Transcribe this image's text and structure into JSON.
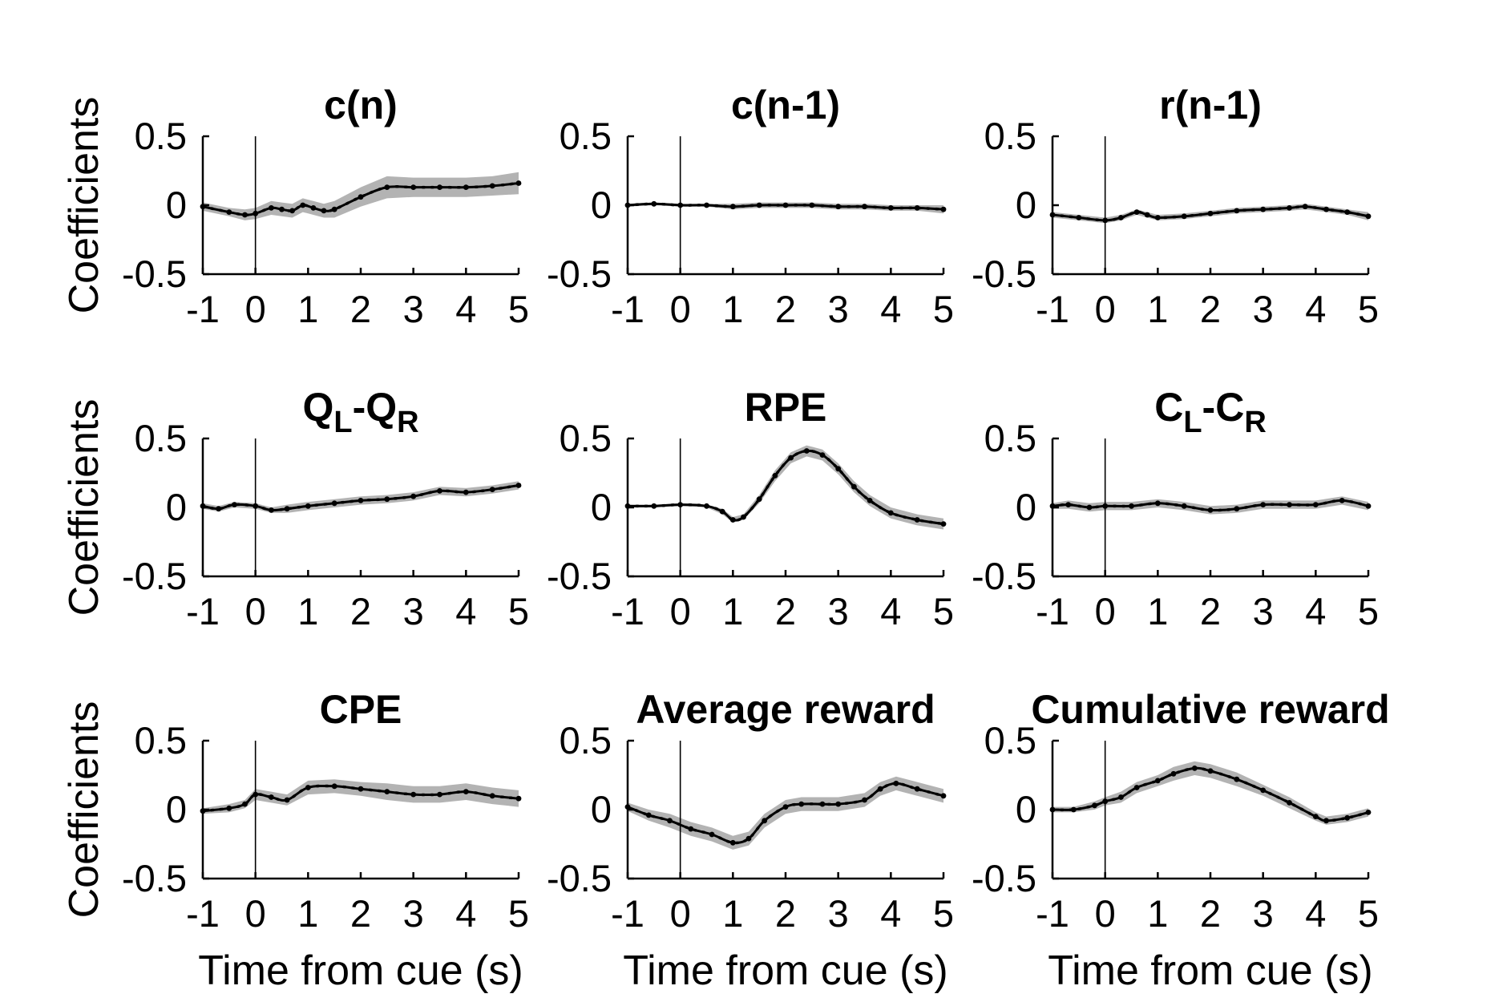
{
  "figure": {
    "ylabel": "Coefficients",
    "xlabel": "Time from cue (s)"
  },
  "chart_data": [
    {
      "type": "line",
      "title": "c(n)",
      "title_parts": [
        {
          "t": "c(n)"
        }
      ],
      "xlim": [
        -1,
        5
      ],
      "ylim": [
        -0.5,
        0.5
      ],
      "xticks": [
        "-1",
        "0",
        "1",
        "2",
        "3",
        "4",
        "5"
      ],
      "yticks": [
        "0.5",
        "0",
        "-0.5"
      ],
      "show_xlabel": false,
      "show_ylabel": true,
      "event_line_x": 0,
      "x": [
        -1,
        -0.5,
        -0.2,
        0,
        0.3,
        0.5,
        0.7,
        0.9,
        1.1,
        1.3,
        1.5,
        2,
        2.5,
        3,
        3.5,
        4,
        4.5,
        5
      ],
      "y": [
        -0.01,
        -0.05,
        -0.07,
        -0.06,
        -0.02,
        -0.03,
        -0.04,
        0.0,
        -0.02,
        -0.04,
        -0.03,
        0.06,
        0.13,
        0.13,
        0.13,
        0.13,
        0.14,
        0.16
      ],
      "band": [
        0.03,
        0.03,
        0.04,
        0.04,
        0.05,
        0.05,
        0.05,
        0.05,
        0.05,
        0.05,
        0.06,
        0.07,
        0.08,
        0.07,
        0.07,
        0.07,
        0.07,
        0.08
      ],
      "colors": {
        "line": "#000000",
        "band": "#b3b3b3"
      }
    },
    {
      "type": "line",
      "title": "c(n-1)",
      "title_parts": [
        {
          "t": "c(n-1)"
        }
      ],
      "xlim": [
        -1,
        5
      ],
      "ylim": [
        -0.5,
        0.5
      ],
      "xticks": [
        "-1",
        "0",
        "1",
        "2",
        "3",
        "4",
        "5"
      ],
      "yticks": [
        "0.5",
        "0",
        "-0.5"
      ],
      "show_xlabel": false,
      "show_ylabel": false,
      "event_line_x": 0,
      "x": [
        -1,
        -0.5,
        0,
        0.5,
        1,
        1.5,
        2,
        2.5,
        3,
        3.5,
        4,
        4.5,
        5
      ],
      "y": [
        0.0,
        0.01,
        0.0,
        0.0,
        -0.01,
        0.0,
        0.0,
        0.0,
        -0.01,
        -0.01,
        -0.02,
        -0.02,
        -0.03
      ],
      "band": [
        0.01,
        0.01,
        0.01,
        0.01,
        0.02,
        0.02,
        0.02,
        0.02,
        0.02,
        0.02,
        0.02,
        0.02,
        0.03
      ],
      "colors": {
        "line": "#000000",
        "band": "#b3b3b3"
      }
    },
    {
      "type": "line",
      "title": "r(n-1)",
      "title_parts": [
        {
          "t": "r(n-1)"
        }
      ],
      "xlim": [
        -1,
        5
      ],
      "ylim": [
        -0.5,
        0.5
      ],
      "xticks": [
        "-1",
        "0",
        "1",
        "2",
        "3",
        "4",
        "5"
      ],
      "yticks": [
        "0.5",
        "0",
        "-0.5"
      ],
      "show_xlabel": false,
      "show_ylabel": false,
      "event_line_x": 0,
      "x": [
        -1,
        -0.5,
        0,
        0.3,
        0.6,
        0.8,
        1,
        1.5,
        2,
        2.5,
        3,
        3.5,
        3.8,
        4.2,
        4.6,
        5
      ],
      "y": [
        -0.07,
        -0.09,
        -0.11,
        -0.09,
        -0.05,
        -0.07,
        -0.09,
        -0.08,
        -0.06,
        -0.04,
        -0.03,
        -0.02,
        -0.01,
        -0.03,
        -0.05,
        -0.08
      ],
      "band": [
        0.02,
        0.02,
        0.02,
        0.02,
        0.02,
        0.02,
        0.02,
        0.02,
        0.02,
        0.02,
        0.02,
        0.02,
        0.02,
        0.02,
        0.02,
        0.03
      ],
      "colors": {
        "line": "#000000",
        "band": "#b3b3b3"
      }
    },
    {
      "type": "line",
      "title": "QL-QR",
      "title_parts": [
        {
          "t": "Q"
        },
        {
          "t": "L",
          "sub": true
        },
        {
          "t": "-Q"
        },
        {
          "t": "R",
          "sub": true
        }
      ],
      "xlim": [
        -1,
        5
      ],
      "ylim": [
        -0.5,
        0.5
      ],
      "xticks": [
        "-1",
        "0",
        "1",
        "2",
        "3",
        "4",
        "5"
      ],
      "yticks": [
        "0.5",
        "0",
        "-0.5"
      ],
      "show_xlabel": false,
      "show_ylabel": true,
      "event_line_x": 0,
      "x": [
        -1,
        -0.7,
        -0.4,
        0,
        0.3,
        0.6,
        1,
        1.5,
        2,
        2.5,
        3,
        3.5,
        4,
        4.5,
        5
      ],
      "y": [
        0.01,
        -0.01,
        0.02,
        0.01,
        -0.02,
        -0.01,
        0.01,
        0.03,
        0.05,
        0.06,
        0.08,
        0.12,
        0.11,
        0.13,
        0.16
      ],
      "band": [
        0.02,
        0.02,
        0.02,
        0.02,
        0.02,
        0.03,
        0.03,
        0.03,
        0.03,
        0.03,
        0.03,
        0.03,
        0.03,
        0.03,
        0.03
      ],
      "colors": {
        "line": "#000000",
        "band": "#b3b3b3"
      }
    },
    {
      "type": "line",
      "title": "RPE",
      "title_parts": [
        {
          "t": "RPE"
        }
      ],
      "xlim": [
        -1,
        5
      ],
      "ylim": [
        -0.5,
        0.5
      ],
      "xticks": [
        "-1",
        "0",
        "1",
        "2",
        "3",
        "4",
        "5"
      ],
      "yticks": [
        "0.5",
        "0",
        "-0.5"
      ],
      "show_xlabel": false,
      "show_ylabel": false,
      "event_line_x": 0,
      "x": [
        -1,
        -0.5,
        0,
        0.5,
        0.8,
        1,
        1.2,
        1.5,
        1.8,
        2.1,
        2.4,
        2.7,
        3,
        3.3,
        3.6,
        4,
        4.5,
        5
      ],
      "y": [
        0.01,
        0.01,
        0.02,
        0.01,
        -0.03,
        -0.09,
        -0.07,
        0.06,
        0.23,
        0.36,
        0.41,
        0.38,
        0.28,
        0.15,
        0.05,
        -0.04,
        -0.09,
        -0.12
      ],
      "band": [
        0.01,
        0.01,
        0.01,
        0.01,
        0.02,
        0.02,
        0.02,
        0.03,
        0.04,
        0.04,
        0.04,
        0.04,
        0.04,
        0.04,
        0.04,
        0.04,
        0.04,
        0.04
      ],
      "colors": {
        "line": "#000000",
        "band": "#b3b3b3"
      }
    },
    {
      "type": "line",
      "title": "CL-CR",
      "title_parts": [
        {
          "t": "C"
        },
        {
          "t": "L",
          "sub": true
        },
        {
          "t": "-C"
        },
        {
          "t": "R",
          "sub": true
        }
      ],
      "xlim": [
        -1,
        5
      ],
      "ylim": [
        -0.5,
        0.5
      ],
      "xticks": [
        "-1",
        "0",
        "1",
        "2",
        "3",
        "4",
        "5"
      ],
      "yticks": [
        "0.5",
        "0",
        "-0.5"
      ],
      "show_xlabel": false,
      "show_ylabel": false,
      "event_line_x": 0,
      "x": [
        -1,
        -0.7,
        -0.3,
        0,
        0.5,
        1,
        1.5,
        2,
        2.5,
        3,
        3.5,
        4,
        4.5,
        5
      ],
      "y": [
        0.01,
        0.02,
        0.0,
        0.01,
        0.01,
        0.03,
        0.01,
        -0.02,
        -0.01,
        0.02,
        0.02,
        0.02,
        0.05,
        0.01
      ],
      "band": [
        0.02,
        0.03,
        0.03,
        0.03,
        0.03,
        0.03,
        0.03,
        0.03,
        0.03,
        0.03,
        0.03,
        0.03,
        0.03,
        0.03
      ],
      "colors": {
        "line": "#000000",
        "band": "#b3b3b3"
      }
    },
    {
      "type": "line",
      "title": "CPE",
      "title_parts": [
        {
          "t": "CPE"
        }
      ],
      "xlim": [
        -1,
        5
      ],
      "ylim": [
        -0.5,
        0.5
      ],
      "xticks": [
        "-1",
        "0",
        "1",
        "2",
        "3",
        "4",
        "5"
      ],
      "yticks": [
        "0.5",
        "0",
        "-0.5"
      ],
      "show_xlabel": true,
      "show_ylabel": true,
      "event_line_x": 0,
      "x": [
        -1,
        -0.5,
        -0.2,
        0,
        0.3,
        0.6,
        1,
        1.5,
        2,
        2.5,
        3,
        3.5,
        4,
        4.5,
        5
      ],
      "y": [
        -0.01,
        0.01,
        0.04,
        0.11,
        0.09,
        0.07,
        0.16,
        0.17,
        0.15,
        0.13,
        0.11,
        0.11,
        0.13,
        0.1,
        0.08
      ],
      "band": [
        0.02,
        0.03,
        0.03,
        0.04,
        0.04,
        0.04,
        0.05,
        0.05,
        0.05,
        0.06,
        0.06,
        0.06,
        0.06,
        0.06,
        0.06
      ],
      "colors": {
        "line": "#000000",
        "band": "#b3b3b3"
      }
    },
    {
      "type": "line",
      "title": "Average reward",
      "title_parts": [
        {
          "t": "Average reward"
        }
      ],
      "xlim": [
        -1,
        5
      ],
      "ylim": [
        -0.5,
        0.5
      ],
      "xticks": [
        "-1",
        "0",
        "1",
        "2",
        "3",
        "4",
        "5"
      ],
      "yticks": [
        "0.5",
        "0",
        "-0.5"
      ],
      "show_xlabel": true,
      "show_ylabel": false,
      "event_line_x": 0,
      "x": [
        -1,
        -0.6,
        -0.2,
        0.2,
        0.6,
        1,
        1.3,
        1.6,
        2,
        2.3,
        2.7,
        3,
        3.5,
        3.8,
        4.1,
        4.5,
        5
      ],
      "y": [
        0.02,
        -0.04,
        -0.08,
        -0.14,
        -0.18,
        -0.24,
        -0.21,
        -0.08,
        0.02,
        0.04,
        0.04,
        0.04,
        0.07,
        0.15,
        0.19,
        0.15,
        0.1
      ],
      "band": [
        0.03,
        0.04,
        0.05,
        0.05,
        0.05,
        0.05,
        0.05,
        0.05,
        0.05,
        0.05,
        0.05,
        0.05,
        0.05,
        0.05,
        0.05,
        0.05,
        0.05
      ],
      "colors": {
        "line": "#000000",
        "band": "#b3b3b3"
      }
    },
    {
      "type": "line",
      "title": "Cumulative reward",
      "title_parts": [
        {
          "t": "Cumulative reward"
        }
      ],
      "xlim": [
        -1,
        5
      ],
      "ylim": [
        -0.5,
        0.5
      ],
      "xticks": [
        "-1",
        "0",
        "1",
        "2",
        "3",
        "4",
        "5"
      ],
      "yticks": [
        "0.5",
        "0",
        "-0.5"
      ],
      "show_xlabel": true,
      "show_ylabel": false,
      "event_line_x": 0,
      "x": [
        -1,
        -0.6,
        -0.2,
        0,
        0.3,
        0.6,
        1,
        1.3,
        1.7,
        2,
        2.5,
        3,
        3.5,
        4,
        4.2,
        4.6,
        5
      ],
      "y": [
        0.0,
        0.0,
        0.03,
        0.06,
        0.09,
        0.16,
        0.21,
        0.26,
        0.3,
        0.28,
        0.22,
        0.14,
        0.05,
        -0.05,
        -0.08,
        -0.06,
        -0.02
      ],
      "band": [
        0.02,
        0.02,
        0.03,
        0.03,
        0.04,
        0.04,
        0.04,
        0.05,
        0.05,
        0.05,
        0.05,
        0.04,
        0.04,
        0.03,
        0.03,
        0.03,
        0.03
      ],
      "colors": {
        "line": "#000000",
        "band": "#b3b3b3"
      }
    }
  ]
}
